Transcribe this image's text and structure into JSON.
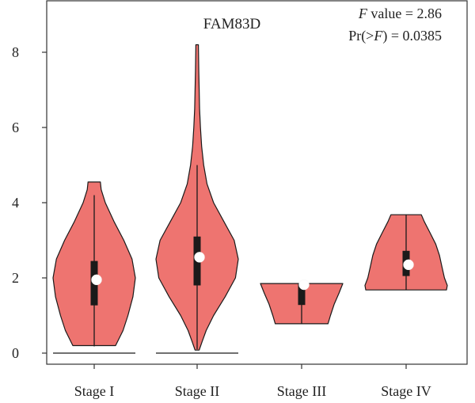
{
  "chart_data": {
    "type": "violin",
    "title": "FAM83D",
    "xlabel": "",
    "ylabel": "",
    "ylim": [
      -0.3,
      8.9
    ],
    "yticks": [
      0,
      2,
      4,
      6,
      8
    ],
    "categories": [
      "Stage I",
      "Stage II",
      "Stage III",
      "Stage IV"
    ],
    "annotation": {
      "f_italic": "F",
      "f_rest": " value = 2.86",
      "pr_prefix": "Pr(>",
      "pr_italic": "F",
      "pr_suffix": ") = 0.0385"
    },
    "violins": [
      {
        "category": "Stage I",
        "profile": [
          [
            0.2,
            0.52
          ],
          [
            0.6,
            0.7
          ],
          [
            1.0,
            0.82
          ],
          [
            1.5,
            0.94
          ],
          [
            2.0,
            1.0
          ],
          [
            2.5,
            0.92
          ],
          [
            3.0,
            0.72
          ],
          [
            3.5,
            0.48
          ],
          [
            4.0,
            0.27
          ],
          [
            4.35,
            0.17
          ],
          [
            4.55,
            0.15
          ]
        ],
        "box": {
          "q1": 1.27,
          "median": 1.9,
          "q3": 2.45,
          "whisker_low": 0.18,
          "whisker_high": 4.2
        },
        "mean": 1.95,
        "baseline": 0
      },
      {
        "category": "Stage II",
        "profile": [
          [
            0.08,
            0.05
          ],
          [
            0.3,
            0.12
          ],
          [
            0.6,
            0.22
          ],
          [
            1.0,
            0.4
          ],
          [
            1.5,
            0.68
          ],
          [
            2.0,
            0.93
          ],
          [
            2.5,
            1.0
          ],
          [
            3.0,
            0.9
          ],
          [
            3.5,
            0.65
          ],
          [
            4.0,
            0.4
          ],
          [
            4.5,
            0.24
          ],
          [
            5.0,
            0.16
          ],
          [
            5.5,
            0.11
          ],
          [
            6.0,
            0.08
          ],
          [
            6.5,
            0.06
          ],
          [
            7.0,
            0.05
          ],
          [
            7.5,
            0.04
          ],
          [
            8.2,
            0.03
          ]
        ],
        "box": {
          "q1": 1.8,
          "median": 2.45,
          "q3": 3.1,
          "whisker_low": 0.1,
          "whisker_high": 5.0
        },
        "mean": 2.55,
        "baseline": 0
      },
      {
        "category": "Stage III",
        "profile": [
          [
            0.78,
            0.64
          ],
          [
            1.0,
            0.7
          ],
          [
            1.3,
            0.79
          ],
          [
            1.6,
            0.91
          ],
          [
            1.85,
            1.0
          ]
        ],
        "box": {
          "q1": 1.28,
          "median": 1.62,
          "q3": 1.85,
          "whisker_low": 0.78,
          "whisker_high": 1.85
        },
        "mean": 1.82,
        "baseline": null
      },
      {
        "category": "Stage IV",
        "profile": [
          [
            1.68,
            0.98
          ],
          [
            1.8,
            1.0
          ],
          [
            2.0,
            0.93
          ],
          [
            2.3,
            0.87
          ],
          [
            2.6,
            0.81
          ],
          [
            2.9,
            0.72
          ],
          [
            3.2,
            0.58
          ],
          [
            3.5,
            0.44
          ],
          [
            3.68,
            0.37
          ]
        ],
        "box": {
          "q1": 2.05,
          "median": 2.4,
          "q3": 2.72,
          "whisker_low": 1.68,
          "whisker_high": 3.68
        },
        "mean": 2.35,
        "baseline": null
      }
    ],
    "colors": {
      "violin_fill": "#ee7470",
      "outline": "#1a1a1a",
      "box": "#1a1a1a",
      "mean_dot": "#ffffff",
      "axis": "#333333"
    }
  }
}
